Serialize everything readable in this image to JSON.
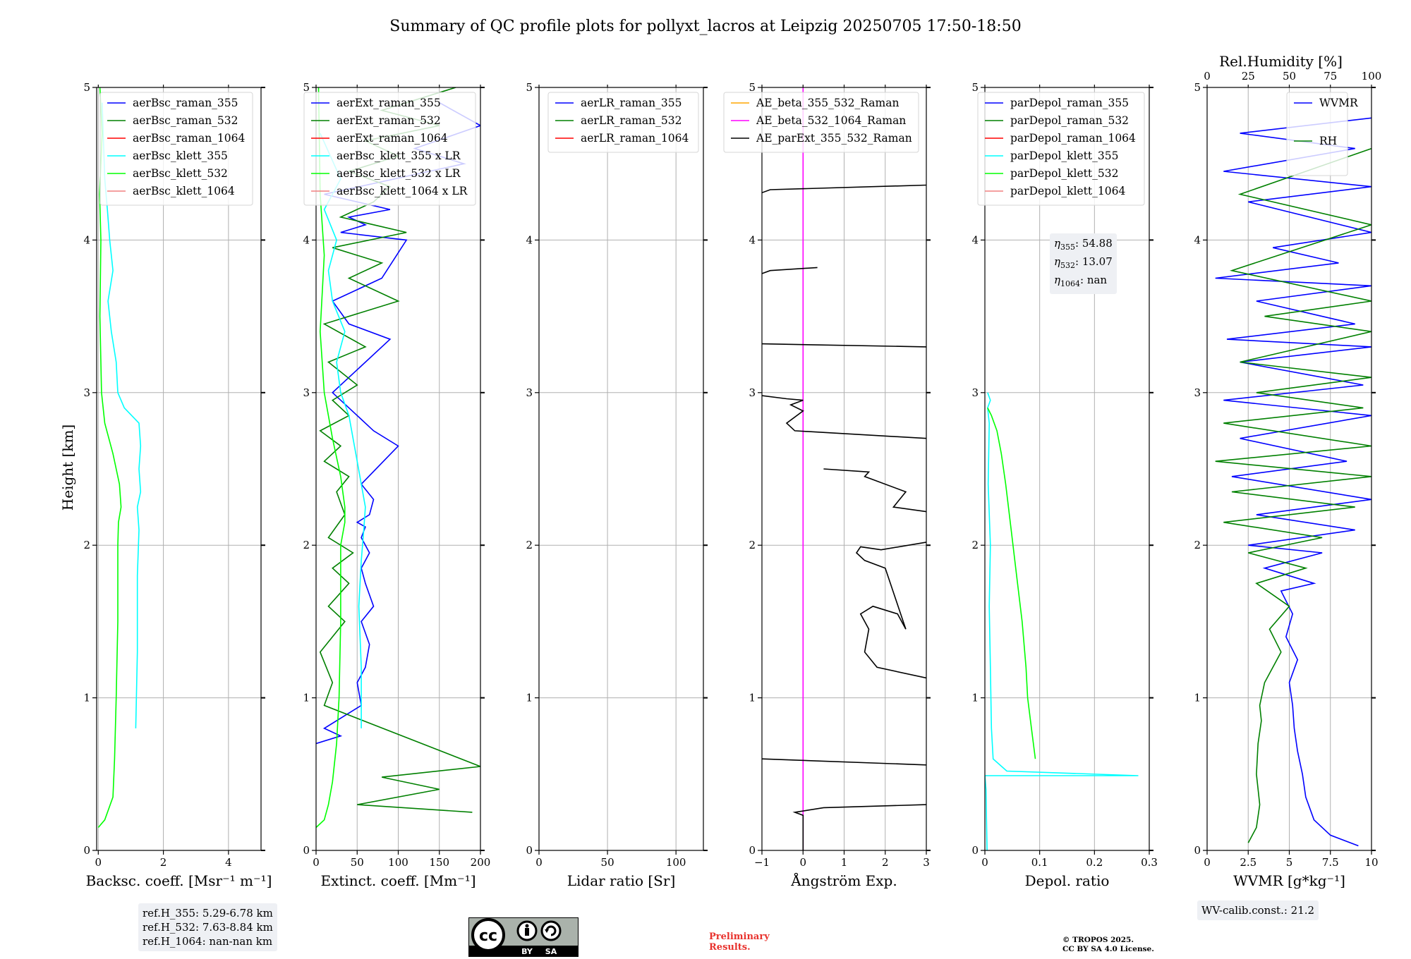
{
  "title": "Summary of QC profile plots for pollyxt_lacros at Leipzig 20250705 17:50-18:50",
  "colors": {
    "blue": "#0000ff",
    "green": "#008000",
    "red": "#ff0000",
    "cyan": "#00ffff",
    "lime": "#00ff00",
    "salmon": "#f08080",
    "orange": "#ffa500",
    "magenta": "#ff00ff",
    "black": "#000000",
    "preliminary_red": "#e8322d",
    "grid": "#b0b0b0"
  },
  "ylabel": "Height [km]",
  "chart_data": [
    {
      "type": "line",
      "xlabel": "Backsc. coeff. [Msr⁻¹ m⁻¹]",
      "xlim": [
        -0.05,
        5
      ],
      "ylim": [
        0,
        5
      ],
      "xticks": [
        0,
        2,
        4
      ],
      "yticks": [
        0,
        1,
        2,
        3,
        4,
        5
      ],
      "grid": true,
      "legend_position": "top-right",
      "legend": [
        {
          "label": "aerBsc_raman_355",
          "color": "blue"
        },
        {
          "label": "aerBsc_raman_532",
          "color": "green"
        },
        {
          "label": "aerBsc_raman_1064",
          "color": "red"
        },
        {
          "label": "aerBsc_klett_355",
          "color": "cyan"
        },
        {
          "label": "aerBsc_klett_532",
          "color": "lime"
        },
        {
          "label": "aerBsc_klett_1064",
          "color": "salmon"
        }
      ],
      "series": [
        {
          "name": "aerBsc_klett_355",
          "color": "cyan",
          "x": [
            1.15,
            1.2,
            1.2,
            1.25,
            1.2,
            1.3,
            1.25,
            1.3,
            1.25,
            0.8,
            0.6,
            0.55,
            0.4,
            0.3,
            0.45,
            0.35,
            0.28,
            0.2,
            0.12
          ],
          "y": [
            0.8,
            1.3,
            1.8,
            2.1,
            2.25,
            2.35,
            2.5,
            2.65,
            2.8,
            2.9,
            3.0,
            3.2,
            3.4,
            3.6,
            3.8,
            4.0,
            4.2,
            4.4,
            4.9
          ]
        },
        {
          "name": "aerBsc_klett_532",
          "color": "lime",
          "x": [
            0.0,
            0.2,
            0.45,
            0.5,
            0.55,
            0.6,
            0.6,
            0.62,
            0.7,
            0.65,
            0.45,
            0.2,
            0.1,
            0.05,
            0.08,
            0.04,
            0.12,
            0.05
          ],
          "y": [
            0.15,
            0.2,
            0.35,
            0.6,
            1.0,
            1.5,
            2.0,
            2.15,
            2.25,
            2.4,
            2.6,
            2.8,
            3.0,
            3.5,
            4.0,
            4.3,
            4.7,
            5.0
          ]
        }
      ]
    },
    {
      "type": "line",
      "xlabel": "Extinct. coeff. [Mm⁻¹]",
      "xlim": [
        0,
        200
      ],
      "ylim": [
        0,
        5
      ],
      "xticks": [
        0,
        50,
        100,
        150,
        200
      ],
      "yticks": [
        0,
        1,
        2,
        3,
        4,
        5
      ],
      "grid": true,
      "legend_position": "top-right",
      "legend": [
        {
          "label": "aerExt_raman_355",
          "color": "blue"
        },
        {
          "label": "aerExt_raman_532",
          "color": "green"
        },
        {
          "label": "aerExt_raman_1064",
          "color": "red"
        },
        {
          "label": "aerBsc_klett_355 x LR",
          "color": "cyan"
        },
        {
          "label": "aerBsc_klett_532 x LR",
          "color": "lime"
        },
        {
          "label": "aerBsc_klett_1064 x LR",
          "color": "salmon"
        }
      ],
      "series": [
        {
          "name": "aerExt_raman_355",
          "color": "blue",
          "x": [
            0,
            30,
            10,
            55,
            50,
            60,
            65,
            55,
            70,
            60,
            55,
            65,
            55,
            60,
            50,
            65,
            70,
            55,
            100,
            70,
            50,
            20,
            90,
            40,
            20,
            80,
            110,
            30,
            60,
            40,
            90,
            10,
            180,
            120,
            200,
            150
          ],
          "y": [
            0.7,
            0.75,
            0.8,
            0.95,
            1.1,
            1.2,
            1.35,
            1.5,
            1.6,
            1.75,
            1.85,
            1.95,
            2.05,
            2.12,
            2.15,
            2.2,
            2.3,
            2.4,
            2.65,
            2.75,
            2.85,
            3.0,
            3.35,
            3.45,
            3.6,
            3.75,
            4.0,
            4.05,
            4.1,
            4.15,
            4.2,
            4.3,
            4.5,
            4.6,
            4.75,
            4.9
          ]
        },
        {
          "name": "aerExt_raman_532",
          "color": "green",
          "x": [
            190,
            50,
            150,
            80,
            200,
            10,
            20,
            5,
            35,
            15,
            40,
            20,
            45,
            15,
            35,
            25,
            40,
            10,
            30,
            5,
            40,
            20,
            50,
            15,
            60,
            10,
            100,
            40,
            80,
            20,
            110,
            30,
            70,
            90,
            40,
            100,
            60,
            150,
            80,
            170
          ],
          "y": [
            0.25,
            0.3,
            0.4,
            0.48,
            0.55,
            0.95,
            1.1,
            1.3,
            1.5,
            1.6,
            1.75,
            1.85,
            1.95,
            2.05,
            2.2,
            2.35,
            2.45,
            2.55,
            2.65,
            2.75,
            2.85,
            2.95,
            3.05,
            3.2,
            3.3,
            3.45,
            3.6,
            3.75,
            3.85,
            3.95,
            4.05,
            4.15,
            4.25,
            4.35,
            4.45,
            4.55,
            4.65,
            4.75,
            4.85,
            5.0
          ]
        },
        {
          "name": "aerBsc_klett_355 x LR",
          "color": "cyan",
          "x": [
            55,
            55,
            52,
            55,
            58,
            60,
            55,
            50,
            45,
            40,
            30,
            25,
            35,
            20,
            15,
            25,
            10,
            30,
            5
          ],
          "y": [
            0.8,
            1.2,
            1.6,
            1.9,
            2.1,
            2.25,
            2.4,
            2.55,
            2.7,
            2.85,
            3.0,
            3.2,
            3.4,
            3.6,
            3.8,
            4.0,
            4.2,
            4.4,
            4.7
          ]
        },
        {
          "name": "aerBsc_klett_532 x LR",
          "color": "lime",
          "x": [
            0,
            10,
            15,
            20,
            25,
            28,
            30,
            30,
            35,
            35,
            30,
            20,
            10,
            5,
            10,
            5,
            3
          ],
          "y": [
            0.15,
            0.2,
            0.3,
            0.45,
            0.7,
            1.0,
            1.5,
            2.0,
            2.15,
            2.25,
            2.45,
            2.7,
            3.0,
            3.4,
            3.9,
            4.3,
            5.0
          ]
        }
      ]
    },
    {
      "type": "line",
      "xlabel": "Lidar ratio [Sr]",
      "xlim": [
        0,
        120
      ],
      "ylim": [
        0,
        5
      ],
      "xticks": [
        0,
        50,
        100
      ],
      "yticks": [
        0,
        1,
        2,
        3,
        4,
        5
      ],
      "grid": true,
      "legend_position": "top-right",
      "legend": [
        {
          "label": "aerLR_raman_355",
          "color": "blue"
        },
        {
          "label": "aerLR_raman_532",
          "color": "green"
        },
        {
          "label": "aerLR_raman_1064",
          "color": "red"
        }
      ],
      "series": []
    },
    {
      "type": "line",
      "xlabel": "Ångström Exp.",
      "xlim": [
        -1,
        3
      ],
      "ylim": [
        0,
        5
      ],
      "xticks": [
        -1,
        0,
        1,
        2,
        3
      ],
      "yticks": [
        0,
        1,
        2,
        3,
        4,
        5
      ],
      "grid": true,
      "legend_position": "top-right",
      "legend": [
        {
          "label": "AE_beta_355_532_Raman",
          "color": "orange"
        },
        {
          "label": "AE_beta_532_1064_Raman",
          "color": "magenta"
        },
        {
          "label": "AE_parExt_355_532_Raman",
          "color": "black"
        }
      ],
      "series": [
        {
          "name": "AE_beta_532_1064_Raman",
          "color": "magenta",
          "x": [
            0,
            0
          ],
          "y": [
            0,
            5
          ]
        },
        {
          "name": "AE_parExt_355_532_Raman",
          "color": "black",
          "x": [
            0,
            0,
            -0.2,
            0.5,
            3,
            null,
            -1,
            3,
            null,
            3,
            1.8,
            1.5,
            1.6,
            1.4,
            1.7,
            2.3,
            2.5,
            2.0,
            1.5,
            1.3,
            1.4,
            1.9,
            3,
            null,
            3,
            2.2,
            2.5,
            1.5,
            1.6,
            0.5,
            null,
            3,
            -0.2,
            -0.4,
            0.0,
            -0.3,
            0.0,
            -0.4,
            -1,
            null,
            -1,
            3,
            null,
            -1,
            -0.8,
            0.35,
            null,
            -1,
            -0.8,
            3
          ],
          "y": [
            0.0,
            0.23,
            0.25,
            0.28,
            0.3,
            null,
            0.6,
            0.56,
            null,
            1.13,
            1.2,
            1.3,
            1.45,
            1.55,
            1.6,
            1.55,
            1.45,
            1.85,
            1.9,
            1.95,
            1.99,
            1.97,
            2.02,
            null,
            2.22,
            2.25,
            2.35,
            2.45,
            2.48,
            2.5,
            null,
            2.7,
            2.75,
            2.8,
            2.88,
            2.92,
            2.95,
            2.96,
            2.98,
            null,
            3.32,
            3.3,
            null,
            3.78,
            3.8,
            3.82,
            null,
            4.31,
            4.33,
            4.36
          ]
        }
      ]
    },
    {
      "type": "line",
      "xlabel": "Depol. ratio",
      "xlim": [
        0,
        0.3
      ],
      "ylim": [
        0,
        5
      ],
      "xticks": [
        0.0,
        0.1,
        0.2,
        0.3
      ],
      "yticks": [
        0,
        1,
        2,
        3,
        4,
        5
      ],
      "grid": true,
      "legend_position": "top-right",
      "legend": [
        {
          "label": "parDepol_raman_355",
          "color": "blue"
        },
        {
          "label": "parDepol_raman_532",
          "color": "green"
        },
        {
          "label": "parDepol_raman_1064",
          "color": "red"
        },
        {
          "label": "parDepol_klett_355",
          "color": "cyan"
        },
        {
          "label": "parDepol_klett_532",
          "color": "lime"
        },
        {
          "label": "parDepol_klett_1064",
          "color": "salmon"
        }
      ],
      "series": [
        {
          "name": "parDepol_klett_355",
          "color": "cyan",
          "x": [
            0.004,
            0.003,
            0.002,
            0.0,
            0.28,
            0.04,
            0.015,
            0.012,
            0.01,
            0.008,
            0.01,
            0.006,
            0.008,
            0.005,
            0.01,
            0.005
          ],
          "y": [
            0.0,
            0.2,
            0.4,
            0.49,
            0.49,
            0.52,
            0.6,
            0.8,
            1.2,
            1.6,
            2.0,
            2.4,
            2.8,
            2.9,
            2.95,
            3.0
          ]
        },
        {
          "name": "parDepol_klett_532",
          "color": "lime",
          "x": [
            0.092,
            0.085,
            0.078,
            0.075,
            0.068,
            0.058,
            0.048,
            0.038,
            0.03,
            0.022,
            0.012,
            0.005
          ],
          "y": [
            0.6,
            0.8,
            1.0,
            1.2,
            1.5,
            1.8,
            2.1,
            2.4,
            2.6,
            2.75,
            2.85,
            2.9
          ]
        }
      ]
    },
    {
      "type": "line",
      "xlabel": "WVMR [g*kg⁻¹]",
      "x2label": "Rel.Humidity [%]",
      "xlim": [
        0,
        10
      ],
      "x2lim": [
        0,
        100
      ],
      "ylim": [
        0,
        5
      ],
      "xticks": [
        0.0,
        2.5,
        5.0,
        7.5,
        10.0
      ],
      "x2ticks": [
        0,
        25,
        50,
        75,
        100
      ],
      "yticks": [
        0,
        1,
        2,
        3,
        4,
        5
      ],
      "grid": true,
      "legend_position": "top-right",
      "legend": [
        {
          "label": "WVMR",
          "color": "blue"
        },
        {
          "label": "RH",
          "color": "green"
        }
      ],
      "series": [
        {
          "name": "WVMR",
          "color": "blue",
          "x": [
            9.2,
            7.5,
            6.5,
            6.0,
            5.8,
            5.5,
            5.3,
            5.2,
            5.0,
            5.5,
            4.8,
            5.2,
            4.5,
            6.5,
            3.5,
            7.0,
            2.5,
            9.0,
            3.0,
            10,
            1.5,
            8.5,
            2.0,
            10,
            1.0,
            9.5,
            2.0,
            10,
            1.2,
            9.0,
            3.0,
            10,
            0.5,
            8.0,
            4.0,
            10,
            2.5,
            10,
            1.0,
            9.0,
            2.0,
            10
          ],
          "y": [
            0.03,
            0.1,
            0.2,
            0.35,
            0.5,
            0.65,
            0.8,
            0.95,
            1.1,
            1.25,
            1.4,
            1.55,
            1.7,
            1.75,
            1.85,
            1.95,
            2.0,
            2.1,
            2.2,
            2.3,
            2.45,
            2.55,
            2.7,
            2.85,
            2.95,
            3.05,
            3.2,
            3.3,
            3.35,
            3.45,
            3.6,
            3.7,
            3.75,
            3.85,
            3.95,
            4.05,
            4.25,
            4.35,
            4.45,
            4.6,
            4.7,
            4.8
          ]
        },
        {
          "name": "RH",
          "color": "green",
          "x": [
            2.5,
            3.0,
            3.2,
            3.0,
            3.1,
            3.3,
            3.2,
            3.5,
            4.5,
            3.8,
            5.0,
            3.0,
            6.0,
            2.5,
            7.0,
            1.0,
            9.0,
            1.5,
            10,
            0.5,
            10,
            1.0,
            9.5,
            3.0,
            10,
            2.0,
            10,
            3.5,
            10,
            1.5,
            10,
            2.0,
            10
          ],
          "y": [
            0.05,
            0.15,
            0.3,
            0.5,
            0.7,
            0.85,
            0.95,
            1.1,
            1.3,
            1.45,
            1.6,
            1.75,
            1.85,
            1.95,
            2.05,
            2.15,
            2.25,
            2.35,
            2.45,
            2.55,
            2.65,
            2.8,
            2.9,
            3.0,
            3.1,
            3.2,
            3.4,
            3.5,
            3.6,
            3.8,
            4.1,
            4.3,
            4.6
          ]
        }
      ]
    }
  ],
  "ref_heights": [
    "ref.H_355: 5.29-6.78 km",
    "ref.H_532: 7.63-8.84 km",
    "ref.H_1064: nan-nan km"
  ],
  "eta": [
    {
      "symbol": "η",
      "sub": "355",
      "value": ": 54.88"
    },
    {
      "symbol": "η",
      "sub": "532",
      "value": ": 13.07"
    },
    {
      "symbol": "η",
      "sub": "1064",
      "value": ": nan"
    }
  ],
  "wv_calib": "WV-calib.const.: 21.2",
  "license_badge": {
    "cc": "cc",
    "by": "BY",
    "sa": "SA"
  },
  "preliminary": [
    "Preliminary",
    "Results."
  ],
  "copyright": [
    "© TROPOS 2025.",
    "CC BY SA 4.0 License."
  ]
}
